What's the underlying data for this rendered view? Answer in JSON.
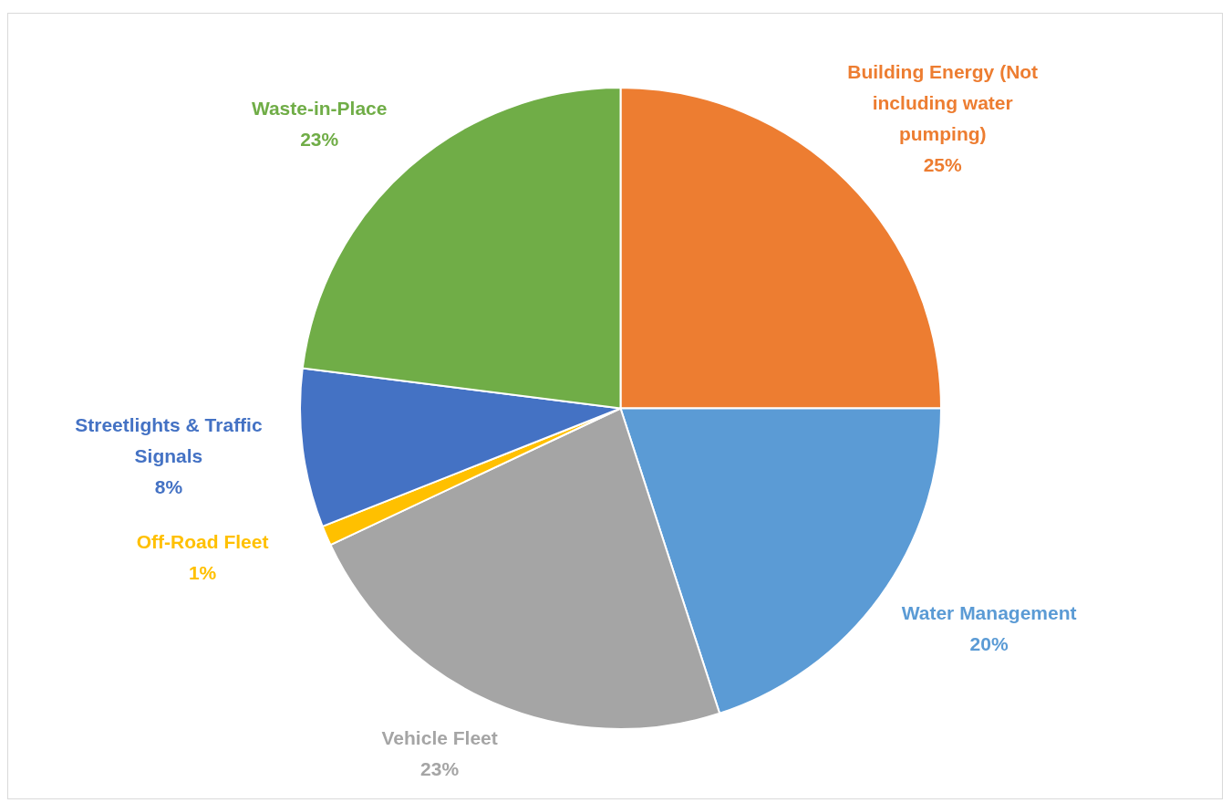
{
  "chart_data": {
    "type": "pie",
    "categories": [
      "Building Energy (Not including water pumping)",
      "Water Management",
      "Vehicle Fleet",
      "Off-Road Fleet",
      "Streetlights & Traffic Signals",
      "Waste-in-Place"
    ],
    "values": [
      25,
      20,
      23,
      1,
      8,
      23
    ],
    "value_labels": [
      "25%",
      "20%",
      "23%",
      "1%",
      "8%",
      "23%"
    ],
    "colors": [
      "#ed7d31",
      "#5b9bd5",
      "#a5a5a5",
      "#ffc000",
      "#4472c4",
      "#70ad47"
    ],
    "legend": false
  }
}
